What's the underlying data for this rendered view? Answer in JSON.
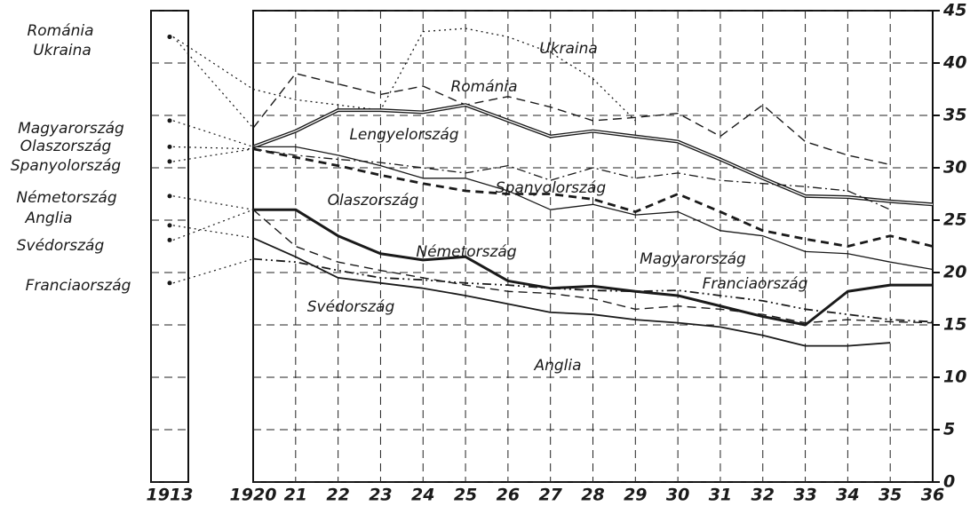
{
  "chart_data": {
    "type": "line",
    "categories": [
      "1913",
      "1920",
      "21",
      "22",
      "23",
      "24",
      "25",
      "26",
      "27",
      "28",
      "29",
      "30",
      "31",
      "32",
      "33",
      "34",
      "35",
      "36"
    ],
    "ylim": [
      0,
      45
    ],
    "yticks": [
      0,
      5,
      10,
      15,
      20,
      25,
      30,
      35,
      40,
      45
    ],
    "grid": true,
    "series": [
      {
        "name": "Ukraina",
        "color": "#1a1a1a",
        "style": "dotted",
        "values": [
          42.5,
          37.5,
          36.5,
          36,
          35.5,
          43,
          43.3,
          42.5,
          41,
          38.5,
          34.5,
          null,
          null,
          null,
          null,
          null,
          null,
          null
        ]
      },
      {
        "name": "Románia",
        "color": "#1a1a1a",
        "style": "dashed",
        "values": [
          42.5,
          33.8,
          39,
          38,
          37,
          37.8,
          36,
          36.8,
          35.8,
          34.5,
          34.8,
          35.2,
          33,
          36,
          32.5,
          31.2,
          30.3,
          null
        ]
      },
      {
        "name": "Lengyelország",
        "color": "#1a1a1a",
        "style": "double",
        "values": [
          null,
          32,
          33.5,
          35.5,
          35.5,
          35.3,
          36,
          34.5,
          33,
          33.5,
          33,
          32.5,
          30.8,
          29,
          27.3,
          27.2,
          26.8,
          26.5
        ]
      },
      {
        "name": "Spanyolország",
        "color": "#1a1a1a",
        "style": "dashdot",
        "values": [
          30.6,
          31.8,
          31.2,
          30.8,
          30.5,
          30,
          29.5,
          30.2,
          28.8,
          30,
          29,
          29.5,
          28.8,
          28.5,
          28.2,
          27.8,
          26,
          null
        ]
      },
      {
        "name": "Olaszország",
        "color": "#1a1a1a",
        "style": "thickdashed",
        "values": [
          32,
          31.8,
          31,
          30.2,
          29.3,
          28.5,
          27.8,
          27.5,
          27.5,
          27,
          25.8,
          27.5,
          25.8,
          24,
          23.2,
          22.5,
          23.5,
          22.5
        ]
      },
      {
        "name": "Magyarország",
        "color": "#1a1a1a",
        "style": "solid",
        "values": [
          34.5,
          32,
          32,
          31.2,
          30.2,
          29,
          29,
          27.8,
          26,
          26.5,
          25.5,
          25.8,
          24,
          23.5,
          22,
          21.8,
          21,
          20.3
        ]
      },
      {
        "name": "Németország",
        "color": "#1a1a1a",
        "style": "thick",
        "values": [
          27.3,
          26,
          26,
          23.5,
          21.8,
          21.2,
          21.5,
          19.2,
          18.5,
          18.7,
          18.2,
          17.8,
          16.8,
          15.8,
          15,
          18.2,
          18.8,
          18.8
        ]
      },
      {
        "name": "Franciaország",
        "color": "#1a1a1a",
        "style": "dashdotdot",
        "values": [
          19,
          21.3,
          21,
          20.2,
          19.5,
          19.3,
          19,
          18.8,
          18.5,
          18.3,
          18.2,
          18.3,
          17.8,
          17.3,
          16.5,
          16,
          15.5,
          15.3
        ]
      },
      {
        "name": "Svédország",
        "color": "#1a1a1a",
        "style": "dashed",
        "values": [
          23.1,
          26,
          22.5,
          21,
          20.2,
          19.5,
          18.8,
          18.2,
          18,
          17.5,
          16.5,
          16.8,
          16.5,
          16,
          15.2,
          15.5,
          15.3,
          15.2
        ]
      },
      {
        "name": "Anglia",
        "color": "#1a1a1a",
        "style": "medium",
        "values": [
          24.5,
          23.3,
          21.5,
          19.5,
          19,
          18.5,
          17.8,
          17,
          16.2,
          16,
          15.5,
          15.2,
          14.8,
          14,
          13,
          13,
          13.3,
          null
        ]
      }
    ]
  }
}
